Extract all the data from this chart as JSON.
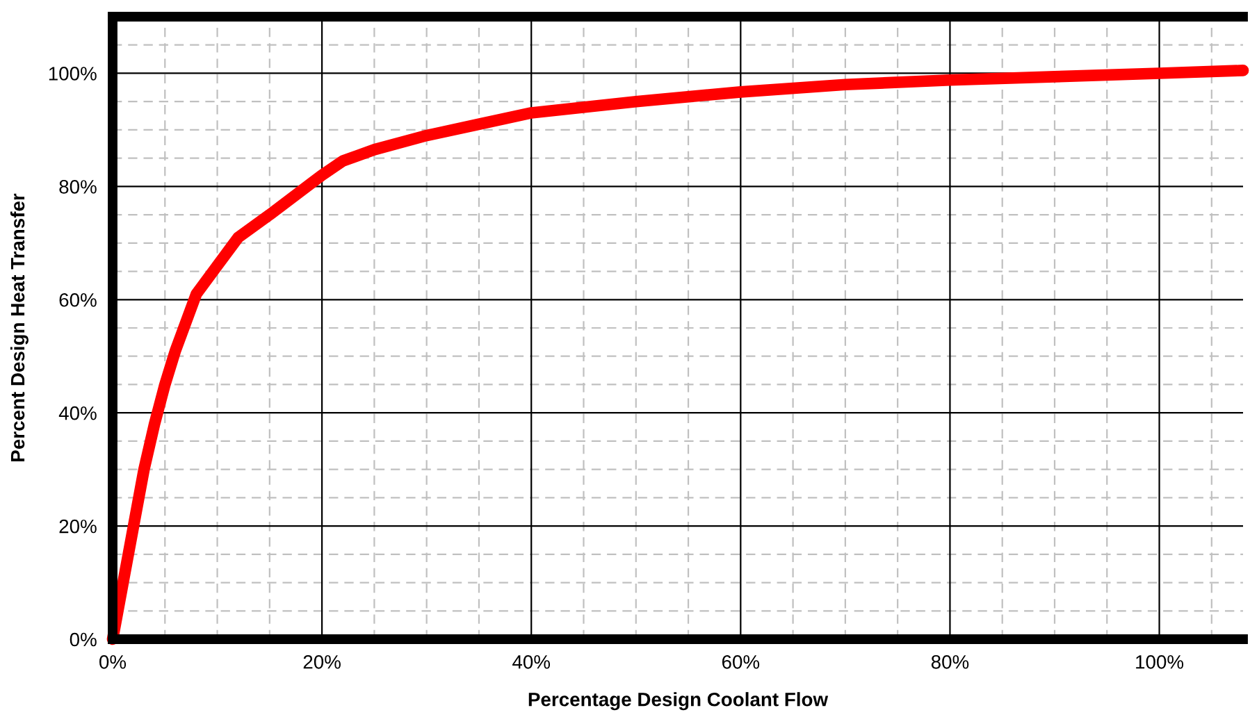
{
  "chart_data": {
    "type": "line",
    "xlabel": "Percentage Design Coolant Flow",
    "ylabel": "Percent Design Heat Transfer",
    "x": [
      0,
      1,
      2,
      3,
      4,
      5,
      6,
      7,
      8,
      10,
      12,
      15,
      20,
      22,
      25,
      30,
      35,
      40,
      50,
      60,
      70,
      80,
      90,
      100,
      108
    ],
    "series": [
      {
        "color": "#ff0000",
        "values": [
          0,
          10,
          20,
          30,
          38,
          45,
          51,
          56,
          61,
          66,
          71,
          75,
          82,
          84.5,
          86.5,
          89,
          91,
          93,
          95,
          96.7,
          98,
          98.8,
          99.4,
          100,
          100.5
        ]
      }
    ],
    "xlim": [
      0,
      108
    ],
    "ylim": [
      0,
      110
    ],
    "xticks": [
      {
        "value": 0,
        "label": "0%"
      },
      {
        "value": 5,
        "label": null
      },
      {
        "value": 10,
        "label": null
      },
      {
        "value": 15,
        "label": null
      },
      {
        "value": 20,
        "label": "20%"
      },
      {
        "value": 25,
        "label": null
      },
      {
        "value": 30,
        "label": null
      },
      {
        "value": 35,
        "label": null
      },
      {
        "value": 40,
        "label": "40%"
      },
      {
        "value": 45,
        "label": null
      },
      {
        "value": 50,
        "label": null
      },
      {
        "value": 55,
        "label": null
      },
      {
        "value": 60,
        "label": "60%"
      },
      {
        "value": 65,
        "label": null
      },
      {
        "value": 70,
        "label": null
      },
      {
        "value": 75,
        "label": null
      },
      {
        "value": 80,
        "label": "80%"
      },
      {
        "value": 85,
        "label": null
      },
      {
        "value": 90,
        "label": null
      },
      {
        "value": 95,
        "label": null
      },
      {
        "value": 100,
        "label": "100%"
      },
      {
        "value": 105,
        "label": null
      }
    ],
    "yticks": [
      {
        "value": 0,
        "label": "0%"
      },
      {
        "value": 5,
        "label": null
      },
      {
        "value": 10,
        "label": null
      },
      {
        "value": 15,
        "label": null
      },
      {
        "value": 20,
        "label": "20%"
      },
      {
        "value": 25,
        "label": null
      },
      {
        "value": 30,
        "label": null
      },
      {
        "value": 35,
        "label": null
      },
      {
        "value": 40,
        "label": "40%"
      },
      {
        "value": 45,
        "label": null
      },
      {
        "value": 50,
        "label": null
      },
      {
        "value": 55,
        "label": null
      },
      {
        "value": 60,
        "label": "60%"
      },
      {
        "value": 65,
        "label": null
      },
      {
        "value": 70,
        "label": null
      },
      {
        "value": 75,
        "label": null
      },
      {
        "value": 80,
        "label": "80%"
      },
      {
        "value": 85,
        "label": null
      },
      {
        "value": 90,
        "label": null
      },
      {
        "value": 95,
        "label": null
      },
      {
        "value": 100,
        "label": "100%"
      },
      {
        "value": 105,
        "label": null
      }
    ],
    "grid": true,
    "marker": "none",
    "line_style": "solid",
    "legend": false
  }
}
